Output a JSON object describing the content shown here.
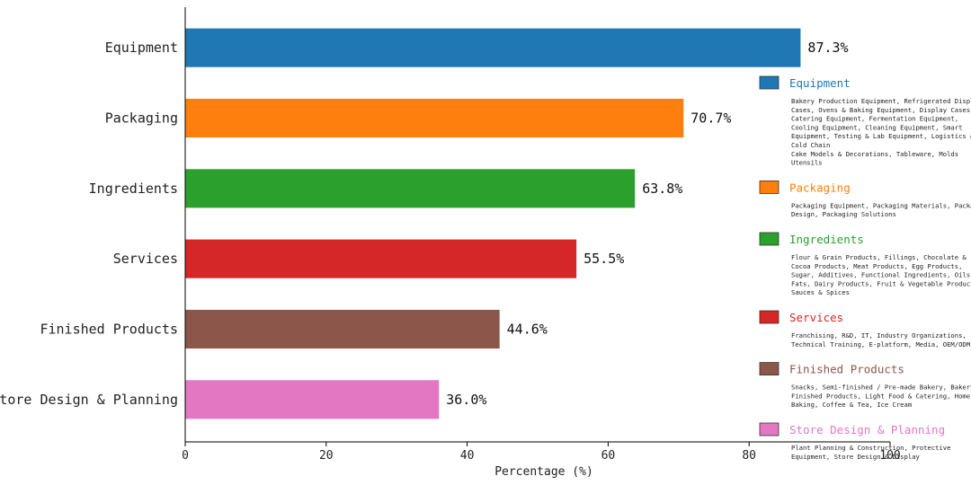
{
  "chart_data": {
    "type": "bar",
    "orientation": "horizontal",
    "title": "",
    "xlabel": "Percentage (%)",
    "ylabel": "",
    "xlim": [
      0,
      100
    ],
    "xticks": [
      0,
      20,
      40,
      60,
      80,
      100
    ],
    "grid": false,
    "legend_position": "right",
    "categories": [
      "Equipment",
      "Packaging",
      "Ingredients",
      "Services",
      "Finished Products",
      "Store Design & Planning"
    ],
    "values": [
      87.3,
      70.7,
      63.8,
      55.5,
      44.6,
      36.0
    ],
    "value_labels": [
      "87.3%",
      "70.7%",
      "63.8%",
      "55.5%",
      "44.6%",
      "36.0%"
    ],
    "colors": [
      "#1f77b4",
      "#ff7f0e",
      "#2ca02c",
      "#d62728",
      "#8c564b",
      "#e377c2"
    ],
    "legend": [
      {
        "name": "Equipment",
        "color": "#1f77b4",
        "description_lines": [
          "Bakery Production Equipment, Refrigerated Display",
          "Cases, Ovens & Baking Equipment, Display Cases,",
          "Catering Equipment, Fermentation Equipment,",
          "Cooling Equipment, Cleaning Equipment, Smart",
          "Equipment, Testing & Lab Equipment, Logistics &",
          "Cold Chain",
          "Cake Models & Decorations, Tableware, Molds",
          "Utensils"
        ]
      },
      {
        "name": "Packaging",
        "color": "#ff7f0e",
        "description_lines": [
          "Packaging Equipment, Packaging Materials, Package",
          "Design, Packaging Solutions"
        ]
      },
      {
        "name": "Ingredients",
        "color": "#2ca02c",
        "description_lines": [
          "Flour & Grain Products, Fillings, Chocolate &",
          "Cocoa Products, Meat Products, Egg Products,",
          "Sugar, Additives, Functional Ingredients, Oils &",
          "Fats, Dairy Products, Fruit & Vegetable Products,",
          "Sauces & Spices"
        ]
      },
      {
        "name": "Services",
        "color": "#d62728",
        "description_lines": [
          "Franchising, R&D, IT, Industry Organizations,",
          "Technical Training, E-platform, Media, OEM/ODM"
        ]
      },
      {
        "name": "Finished Products",
        "color": "#8c564b",
        "description_lines": [
          "Snacks, Semi-finished / Pre-made Bakery, Bakery",
          "Finished Products, Light Food & Catering, Home",
          "Baking, Coffee & Tea, Ice Cream"
        ]
      },
      {
        "name": "Store Design & Planning",
        "color": "#e377c2",
        "description_lines": [
          "Plant Planning & Construction, Protective",
          "Equipment, Store Design & Display"
        ]
      }
    ]
  }
}
